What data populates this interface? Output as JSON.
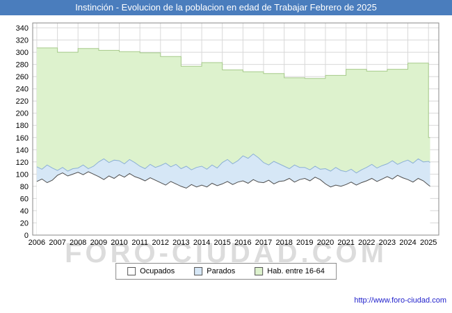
{
  "title_bar": {
    "title": "Instinción - Evolucion de la poblacion en edad de Trabajar Febrero de 2025",
    "bg": "#4a7dbd"
  },
  "watermark": "FORO-CIUDAD.COM",
  "footer": {
    "link": "http://www.foro-ciudad.com"
  },
  "legend": {
    "items": [
      {
        "label": "Ocupados",
        "fill": "#ffffff",
        "border": "#555555"
      },
      {
        "label": "Parados",
        "fill": "#d6e7f6",
        "border": "#555555"
      },
      {
        "label": "Hab. entre 16-64",
        "fill": "#ddf2cd",
        "border": "#555555"
      }
    ]
  },
  "chart_data": {
    "type": "area",
    "title": "Instinción - Evolucion de la poblacion en edad de Trabajar Febrero de 2025",
    "xlabel": "",
    "ylabel": "",
    "grid": true,
    "legend_position": "bottom",
    "x": {
      "start": 2006,
      "step": 0.25,
      "count": 77,
      "extra": [
        2025.08
      ]
    },
    "xlim": [
      2005.8,
      2025.5
    ],
    "ylim": [
      0,
      348
    ],
    "xticks": [
      2006,
      2007,
      2008,
      2009,
      2010,
      2011,
      2012,
      2013,
      2014,
      2015,
      2016,
      2017,
      2018,
      2019,
      2020,
      2021,
      2022,
      2023,
      2024,
      2025
    ],
    "yticks": [
      0,
      20,
      40,
      60,
      80,
      100,
      120,
      140,
      160,
      180,
      200,
      220,
      240,
      260,
      280,
      300,
      320,
      340
    ],
    "series": [
      {
        "name": "Hab. entre 16-64",
        "step": true,
        "fill": "#ddf2cd",
        "line": "#a6ca8a",
        "values": [
          307,
          307,
          307,
          307,
          300,
          300,
          300,
          300,
          306,
          306,
          306,
          306,
          303,
          303,
          303,
          303,
          301,
          301,
          301,
          301,
          299,
          299,
          299,
          299,
          293,
          293,
          293,
          293,
          277,
          277,
          277,
          277,
          283,
          283,
          283,
          283,
          271,
          271,
          271,
          271,
          268,
          268,
          268,
          268,
          265,
          265,
          265,
          265,
          258,
          258,
          258,
          258,
          257,
          257,
          257,
          257,
          262,
          262,
          262,
          262,
          272,
          272,
          272,
          272,
          269,
          269,
          269,
          269,
          272,
          272,
          272,
          272,
          282,
          282,
          282,
          282,
          160,
          160
        ]
      },
      {
        "name": "Parados",
        "step": false,
        "fill": "#d6e7f6",
        "line": "#8cb0d5",
        "values": [
          112,
          108,
          115,
          110,
          106,
          111,
          105,
          109,
          110,
          115,
          109,
          113,
          120,
          125,
          119,
          123,
          122,
          117,
          124,
          119,
          113,
          109,
          116,
          111,
          114,
          118,
          112,
          116,
          109,
          113,
          107,
          111,
          113,
          108,
          115,
          110,
          119,
          124,
          117,
          122,
          130,
          126,
          133,
          127,
          119,
          115,
          121,
          117,
          113,
          109,
          115,
          111,
          111,
          107,
          113,
          108,
          109,
          105,
          111,
          106,
          104,
          108,
          102,
          107,
          111,
          116,
          110,
          114,
          117,
          122,
          116,
          120,
          123,
          118,
          125,
          120,
          121,
          119
        ]
      },
      {
        "name": "Ocupados",
        "step": false,
        "fill": "#ffffff",
        "line": "#4d4d4d",
        "values": [
          88,
          92,
          86,
          90,
          98,
          102,
          97,
          100,
          103,
          99,
          104,
          100,
          96,
          91,
          97,
          93,
          99,
          95,
          101,
          96,
          93,
          89,
          94,
          90,
          86,
          82,
          88,
          84,
          80,
          77,
          83,
          79,
          82,
          79,
          85,
          81,
          84,
          88,
          83,
          87,
          89,
          85,
          91,
          87,
          86,
          90,
          84,
          88,
          89,
          93,
          87,
          91,
          93,
          89,
          95,
          91,
          84,
          79,
          82,
          80,
          83,
          87,
          82,
          86,
          89,
          93,
          88,
          92,
          96,
          92,
          98,
          94,
          91,
          87,
          93,
          89,
          82,
          80
        ]
      }
    ]
  }
}
